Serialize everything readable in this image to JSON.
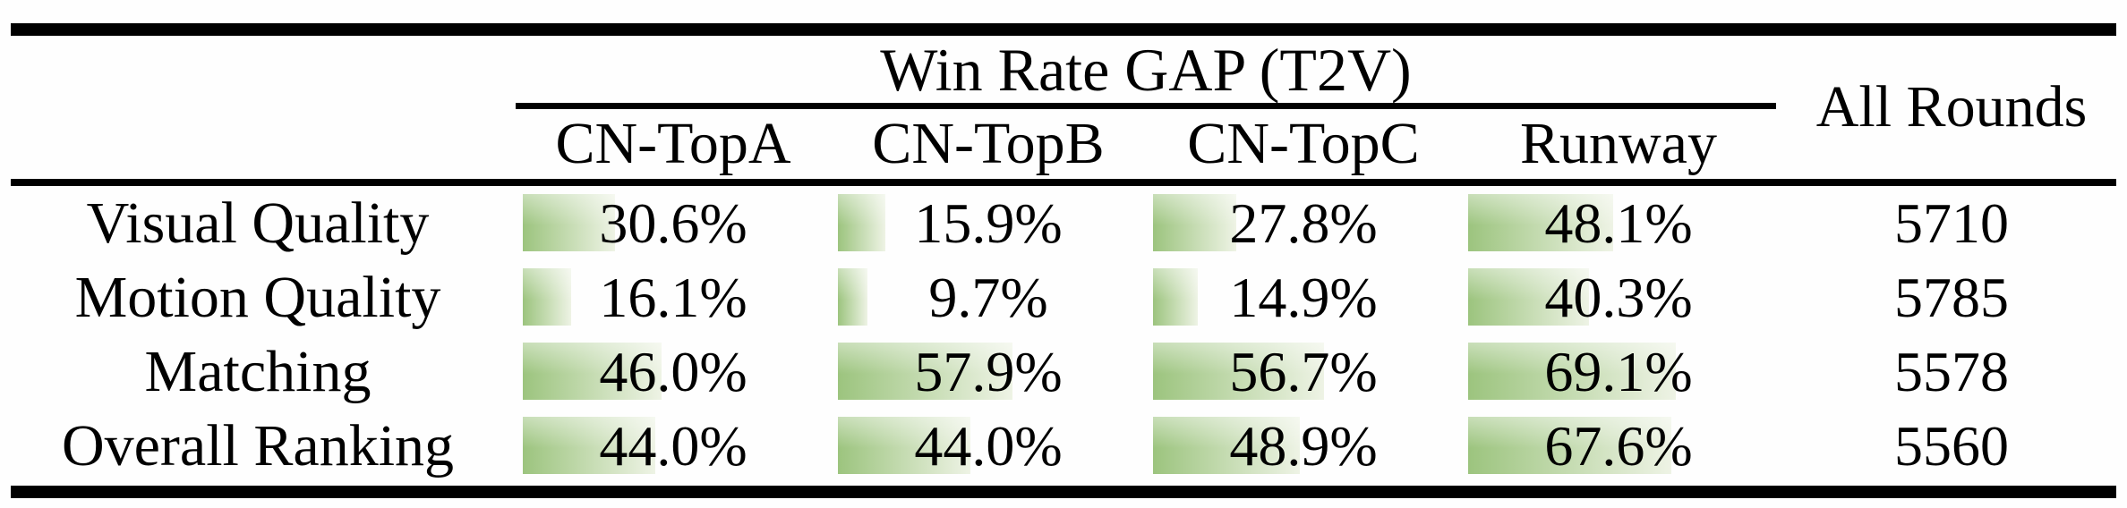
{
  "table": {
    "title": "Win Rate GAP (T2V)",
    "all_rounds_header": "All Rounds",
    "columns": [
      "CN-TopA",
      "CN-TopB",
      "CN-TopC",
      "Runway"
    ],
    "rows": [
      {
        "label": "Visual Quality",
        "values": [
          {
            "pct": 30.6,
            "label": "30.6%"
          },
          {
            "pct": 15.9,
            "label": "15.9%"
          },
          {
            "pct": 27.8,
            "label": "27.8%"
          },
          {
            "pct": 48.1,
            "label": "48.1%"
          }
        ],
        "all_rounds": "5710"
      },
      {
        "label": "Motion Quality",
        "values": [
          {
            "pct": 16.1,
            "label": "16.1%"
          },
          {
            "pct": 9.7,
            "label": "9.7%"
          },
          {
            "pct": 14.9,
            "label": "14.9%"
          },
          {
            "pct": 40.3,
            "label": "40.3%"
          }
        ],
        "all_rounds": "5785"
      },
      {
        "label": "Matching",
        "values": [
          {
            "pct": 46.0,
            "label": "46.0%"
          },
          {
            "pct": 57.9,
            "label": "57.9%"
          },
          {
            "pct": 56.7,
            "label": "56.7%"
          },
          {
            "pct": 69.1,
            "label": "69.1%"
          }
        ],
        "all_rounds": "5578"
      },
      {
        "label": "Overall Ranking",
        "values": [
          {
            "pct": 44.0,
            "label": "44.0%"
          },
          {
            "pct": 44.0,
            "label": "44.0%"
          },
          {
            "pct": 48.9,
            "label": "48.9%"
          },
          {
            "pct": 67.6,
            "label": "67.6%"
          }
        ],
        "all_rounds": "5560"
      }
    ]
  },
  "colors": {
    "bar_gradient_start": "#9cc47e",
    "bar_gradient_end": "#eef3e5",
    "rule_color": "#000000"
  }
}
